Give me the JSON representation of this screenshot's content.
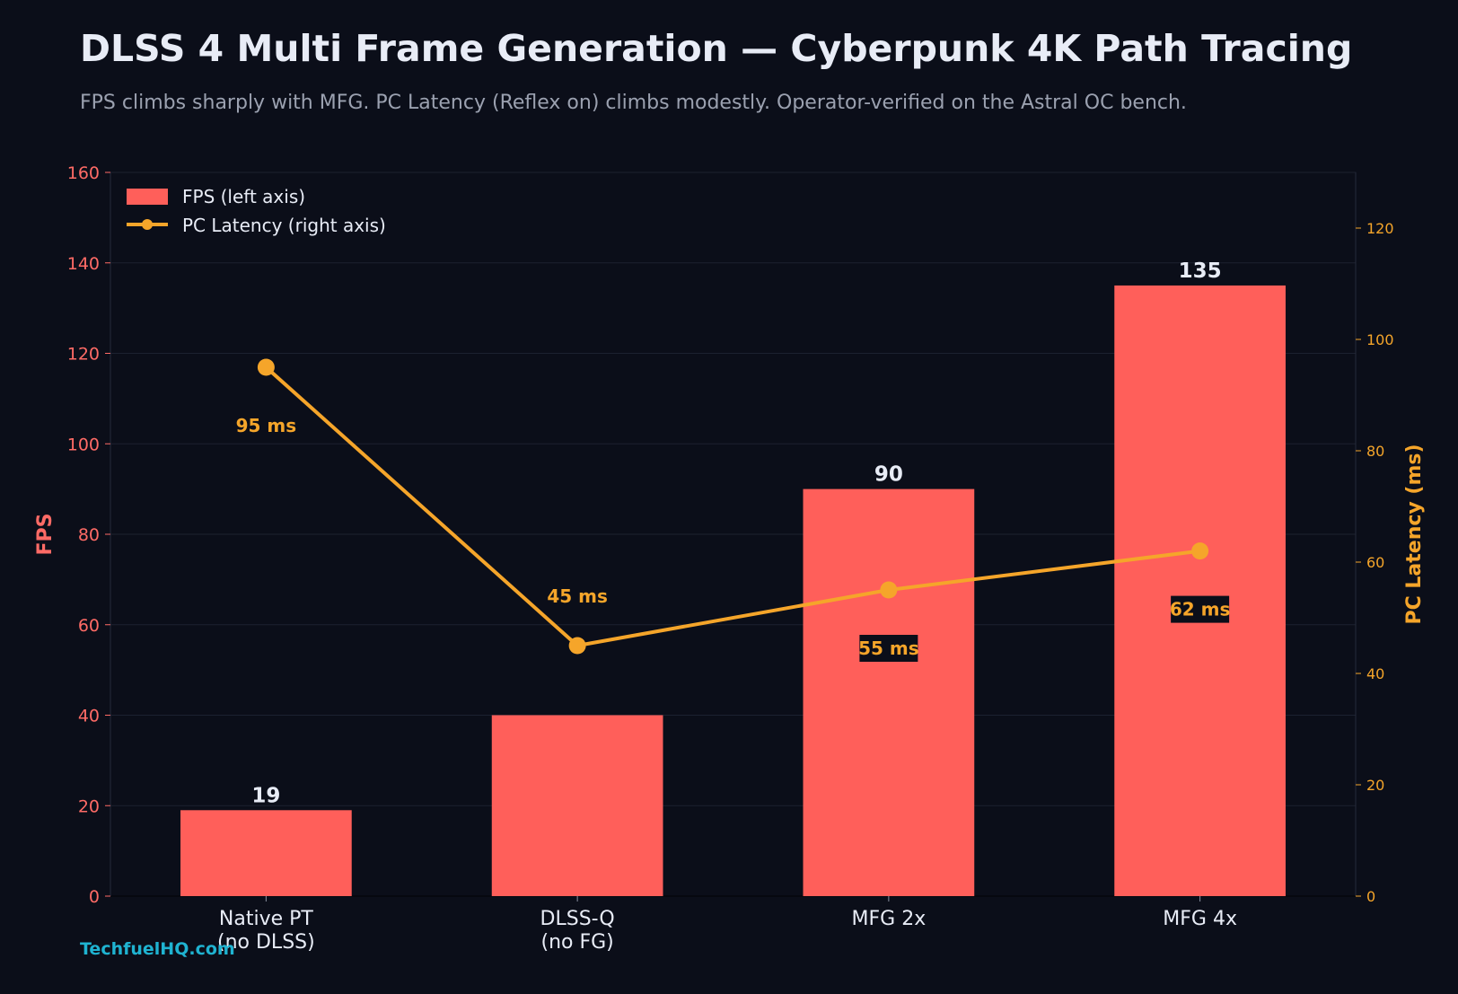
{
  "title": "DLSS 4 Multi Frame Generation — Cyberpunk 4K Path Tracing",
  "subtitle": "FPS climbs sharply with MFG. PC Latency (Reflex on) climbs modestly. Operator-verified on the Astral OC bench.",
  "watermark": "TechfuelHQ.com",
  "colors": {
    "background": "#0b0e19",
    "fps_bar": "#ff5f5a",
    "latency_line": "#f5a52a",
    "left_axis": "#ff6b66",
    "right_axis": "#f5a52a",
    "text": "#e8ecf6",
    "label_box": "#0b0e19"
  },
  "chart_data": {
    "type": "bar",
    "categories": [
      "Native PT\n(no DLSS)",
      "DLSS-Q\n(no FG)",
      "MFG 2x",
      "MFG 4x"
    ],
    "series": [
      {
        "name": "FPS (left axis)",
        "type": "bar",
        "axis": "left",
        "values": [
          19,
          40,
          90,
          135
        ],
        "labels": [
          "19",
          "",
          "90",
          "135"
        ]
      },
      {
        "name": "PC Latency (right axis)",
        "type": "line",
        "axis": "right",
        "values": [
          95,
          45,
          55,
          62
        ],
        "labels": [
          "95 ms",
          "45 ms",
          "55 ms",
          "62 ms"
        ]
      }
    ],
    "ylabel": "FPS",
    "ylabel_right": "PC Latency (ms)",
    "ylim": [
      0,
      160
    ],
    "ylim_right": [
      0,
      130
    ],
    "yticks": [
      0,
      20,
      40,
      60,
      80,
      100,
      120,
      140,
      160
    ],
    "yticks_right": [
      0,
      20,
      40,
      60,
      80,
      100,
      120
    ],
    "grid": true,
    "legend_position": "top-left"
  }
}
